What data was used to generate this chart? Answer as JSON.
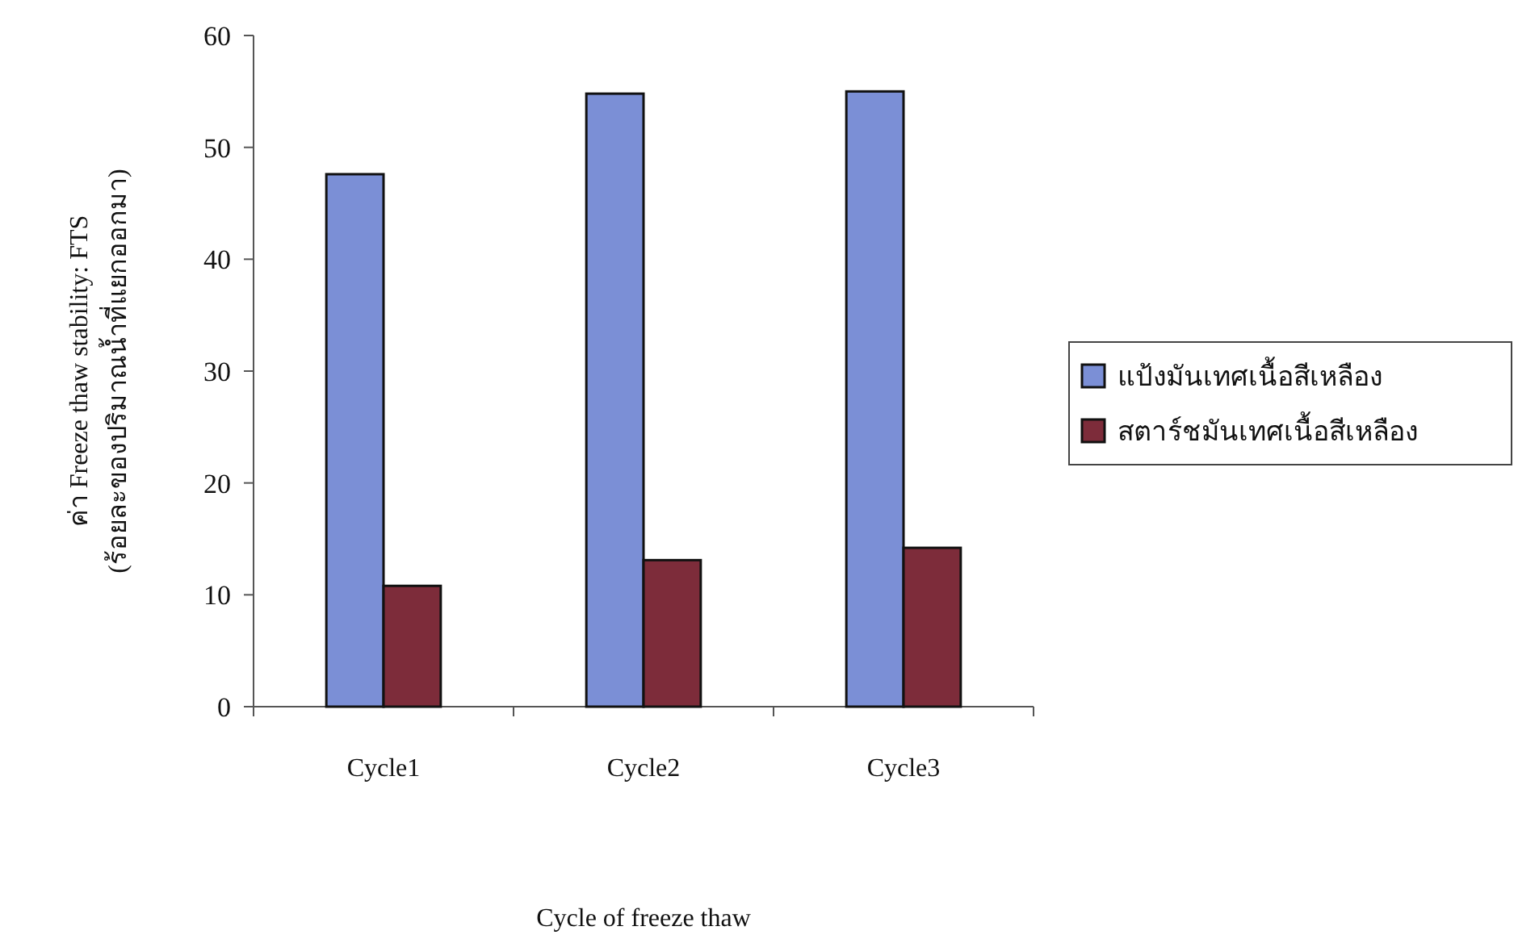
{
  "chart_data": {
    "type": "bar",
    "xlabel": "Cycle of freeze thaw",
    "ylabel": "ค่า Freeze thaw stability: FTS\n(ร้อยละของปริมาณน้ำที่แยกออกมา)",
    "categories": [
      "Cycle1",
      "Cycle2",
      "Cycle3"
    ],
    "series": [
      {
        "name": "แป้งมันเทศเนื้อสีเหลือง",
        "color": "#7b8fd6",
        "values": [
          47.6,
          54.8,
          55.0
        ]
      },
      {
        "name": "สตาร์ชมันเทศเนื้อสีเหลือง",
        "color": "#7d2c3a",
        "values": [
          10.8,
          13.1,
          14.2
        ]
      }
    ],
    "ylim": [
      0,
      60
    ],
    "yticks": [
      0,
      10,
      20,
      30,
      40,
      50,
      60
    ],
    "grid": false,
    "legend": "right"
  }
}
